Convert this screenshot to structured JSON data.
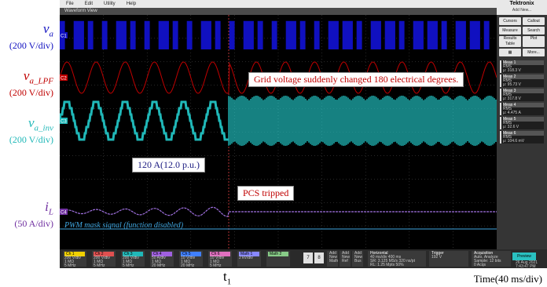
{
  "labels": {
    "va": {
      "sym": "v",
      "sub": "a",
      "unit": "(200 V/div)",
      "color": "#1010c0"
    },
    "va_lpf": {
      "sym": "v",
      "sub": "a_LPF",
      "unit": "(200 V/div)",
      "color": "#c00000"
    },
    "va_inv": {
      "sym": "v",
      "sub": "a_inv",
      "unit": "(200 V/div)",
      "color": "#20b8b8"
    },
    "il": {
      "sym": "i",
      "sub": "L",
      "unit": "(50 A/div)",
      "color": "#7030a0"
    }
  },
  "scope": {
    "menu": [
      "File",
      "Edit",
      "Utility",
      "Help"
    ],
    "tab": "Waveform View",
    "brand": "Tektronix",
    "brand_sub": "Add New...",
    "buttons": [
      "Cursors",
      "Callout",
      "Measure",
      "Search",
      "Results Table",
      "Plot",
      "More..."
    ],
    "measurements": [
      {
        "title": "Meas 1",
        "kind": "RMS",
        "value": "μ: 318.3 V"
      },
      {
        "title": "Meas 2",
        "kind": "RMS",
        "value": "μ: 95.73 V"
      },
      {
        "title": "Meas 3",
        "kind": "RMS",
        "value": "μ: 317.8 V"
      },
      {
        "title": "Meas 4",
        "kind": "RMS",
        "value": "μ: 4.475 A"
      },
      {
        "title": "Meas 5",
        "kind": "RMS",
        "value": "μ: 32.6 V"
      },
      {
        "title": "Meas 6",
        "kind": "RMS",
        "value": "μ: 104.6 mV"
      }
    ],
    "channel_markers": [
      "C1",
      "C2",
      "C3",
      "C4"
    ],
    "pwm_label": "PWM mask signal (function disabled)",
    "preview": "Preview"
  },
  "annotations": {
    "grid": "Grid voltage suddenly changed 180 electrical degrees.",
    "current": "120 A(12.0 p.u.)",
    "pcs": "PCS tripped"
  },
  "status": {
    "channels": [
      {
        "name": "Ch 1",
        "l1": "200 V/div",
        "l2": "1 MΩ",
        "l3": "5 MHz",
        "color": "#f0d000"
      },
      {
        "name": "Ch 2",
        "l1": "200 V/div",
        "l2": "1 MΩ",
        "l3": "5 MHz",
        "color": "#e05050"
      },
      {
        "name": "Ch 3",
        "l1": "200 V/div",
        "l2": "1 MΩ",
        "l3": "5 MHz",
        "color": "#20b8b8"
      },
      {
        "name": "Ch 4",
        "l1": "50 A/div",
        "l2": "1 MΩ",
        "l3": "20 MHz",
        "color": "#a060e0"
      },
      {
        "name": "Ch 5",
        "l1": "10 V/div",
        "l2": "1 MΩ",
        "l3": "20 MHz",
        "color": "#4080ff"
      },
      {
        "name": "Ch 6",
        "l1": "10 V/div",
        "l2": "1 MΩ",
        "l3": "5 MHz",
        "color": "#e070c0"
      },
      {
        "name": "Math 1",
        "l1": "2 kV/div",
        "l2": "",
        "l3": "",
        "color": "#8888ff"
      },
      {
        "name": "Math 2",
        "l1": "",
        "l2": "",
        "l3": "",
        "color": "#88cc88"
      }
    ],
    "add_buttons": [
      "7",
      "8"
    ],
    "add_labels": [
      "Add New Math",
      "Add New Ref",
      "Add New Bus"
    ],
    "horizontal_title": "Horizontal",
    "horizontal": [
      "40 ms/div",
      "400 ms",
      "SR: 3.125 MS/s",
      "320 ns/pt",
      "RL: 1.25 Mpts",
      "50%"
    ],
    "trigger_title": "Trigger",
    "trigger": "192 V",
    "acq_title": "Acquisition",
    "acq": [
      "Auto,",
      "Analyze",
      "Sample: 12 bits",
      "0 Acqs"
    ],
    "date": [
      "26 Aug 2021",
      "7:43:47 PM"
    ]
  },
  "time_label": "Time(40 ms/div)",
  "t1": {
    "t": "t",
    "sub": "1"
  }
}
